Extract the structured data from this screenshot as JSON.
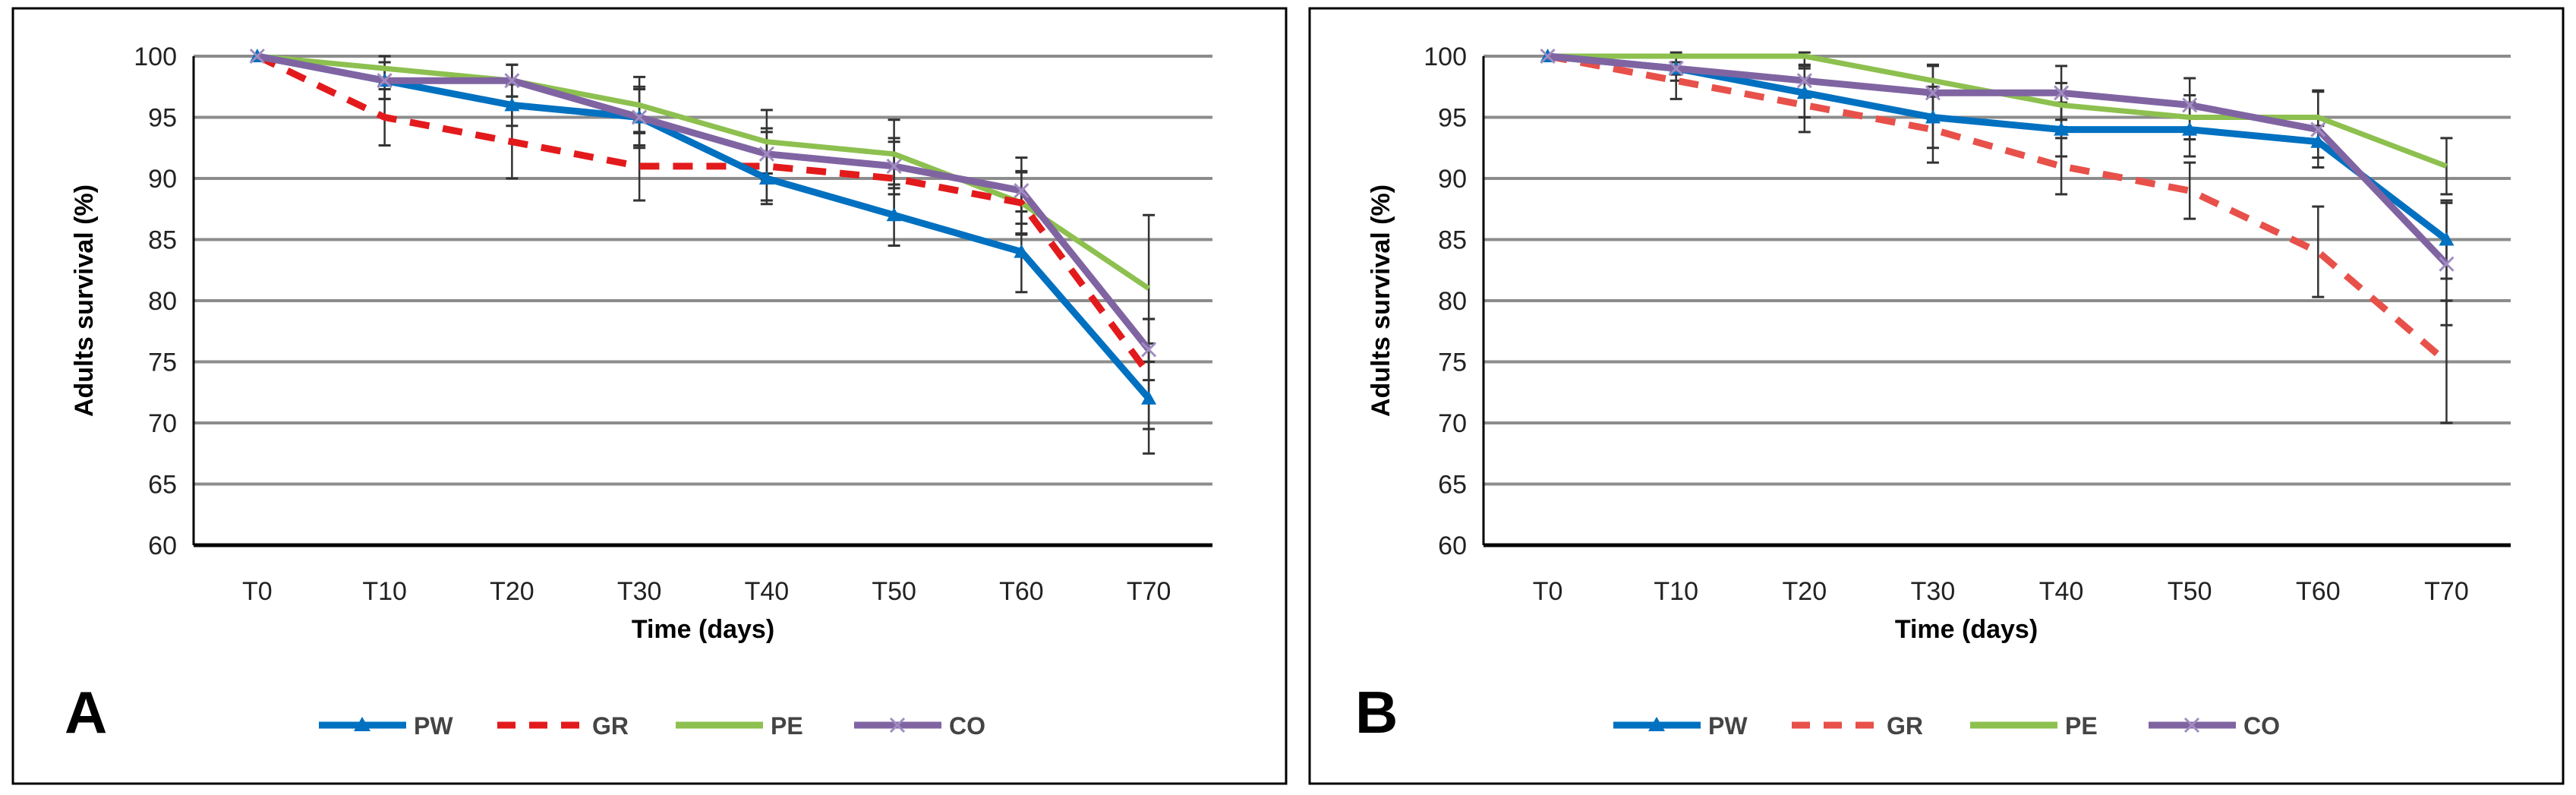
{
  "chart_data": [
    {
      "type": "line",
      "panel_label": "A",
      "title": "",
      "xlabel": "Time (days)",
      "ylabel": "Adults survival (%)",
      "categories": [
        "T0",
        "T10",
        "T20",
        "T30",
        "T40",
        "T50",
        "T60",
        "T70"
      ],
      "ylim": [
        60,
        100
      ],
      "yticks": [
        60,
        65,
        70,
        75,
        80,
        85,
        90,
        95,
        100
      ],
      "grid": true,
      "legend_position": "bottom",
      "series": [
        {
          "name": "PW",
          "color": "#0070c0",
          "dash": false,
          "marker": "triangle",
          "values": [
            100,
            98,
            96,
            95,
            90,
            87,
            84,
            72
          ],
          "errors": [
            0,
            1.5,
            1.7,
            2.5,
            2.1,
            2.5,
            3.3,
            4.5
          ]
        },
        {
          "name": "GR",
          "color": "#e31a1c",
          "dash": true,
          "marker": "none",
          "values": [
            100,
            95,
            93,
            91,
            91,
            90,
            88,
            74
          ],
          "errors": [
            0,
            2.3,
            3,
            2.8,
            2.8,
            3,
            2.5,
            4.5
          ]
        },
        {
          "name": "PE",
          "color": "#8dc04f",
          "dash": false,
          "marker": "none",
          "values": [
            100,
            99,
            98,
            96,
            93,
            92,
            88,
            81
          ],
          "errors": [
            0,
            1,
            1.3,
            2.3,
            2.6,
            2.8,
            2.6,
            6
          ]
        },
        {
          "name": "CO",
          "color": "#8064a2",
          "dash": false,
          "marker": "x",
          "values": [
            100,
            98,
            98,
            95,
            92,
            91,
            89,
            76
          ],
          "errors": [
            0,
            1.5,
            1.3,
            2.3,
            2.1,
            2.3,
            2.7,
            2.5
          ]
        }
      ]
    },
    {
      "type": "line",
      "panel_label": "B",
      "title": "",
      "xlabel": "Time (days)",
      "ylabel": "Adults survival (%)",
      "categories": [
        "T0",
        "T10",
        "T20",
        "T30",
        "T40",
        "T50",
        "T60",
        "T70"
      ],
      "ylim": [
        60,
        100
      ],
      "yticks": [
        60,
        65,
        70,
        75,
        80,
        85,
        90,
        95,
        100
      ],
      "grid": true,
      "legend_position": "bottom",
      "series": [
        {
          "name": "PW",
          "color": "#0070c0",
          "dash": false,
          "marker": "triangle",
          "values": [
            100,
            99,
            97,
            95,
            94,
            94,
            93,
            85
          ],
          "errors": [
            0,
            1,
            2,
            2.5,
            2.2,
            2.2,
            1.3,
            3.2
          ]
        },
        {
          "name": "GR",
          "color": "#e8504a",
          "dash": true,
          "marker": "none",
          "values": [
            100,
            98,
            96,
            94,
            91,
            89,
            84,
            75
          ],
          "errors": [
            0,
            1.5,
            2.2,
            2.7,
            2.3,
            2.3,
            3.7,
            5
          ]
        },
        {
          "name": "PE",
          "color": "#8dc04f",
          "dash": false,
          "marker": "none",
          "values": [
            100,
            100,
            100,
            98,
            96,
            95,
            95,
            91
          ],
          "errors": [
            0,
            0.5,
            0.8,
            1.3,
            1.8,
            1.8,
            2.2,
            2.3
          ]
        },
        {
          "name": "CO",
          "color": "#8064a2",
          "dash": false,
          "marker": "x",
          "values": [
            100,
            99,
            98,
            97,
            97,
            96,
            94,
            83
          ],
          "errors": [
            0,
            0.5,
            1.3,
            2.2,
            2.2,
            2.2,
            3.1,
            5
          ]
        }
      ]
    }
  ]
}
